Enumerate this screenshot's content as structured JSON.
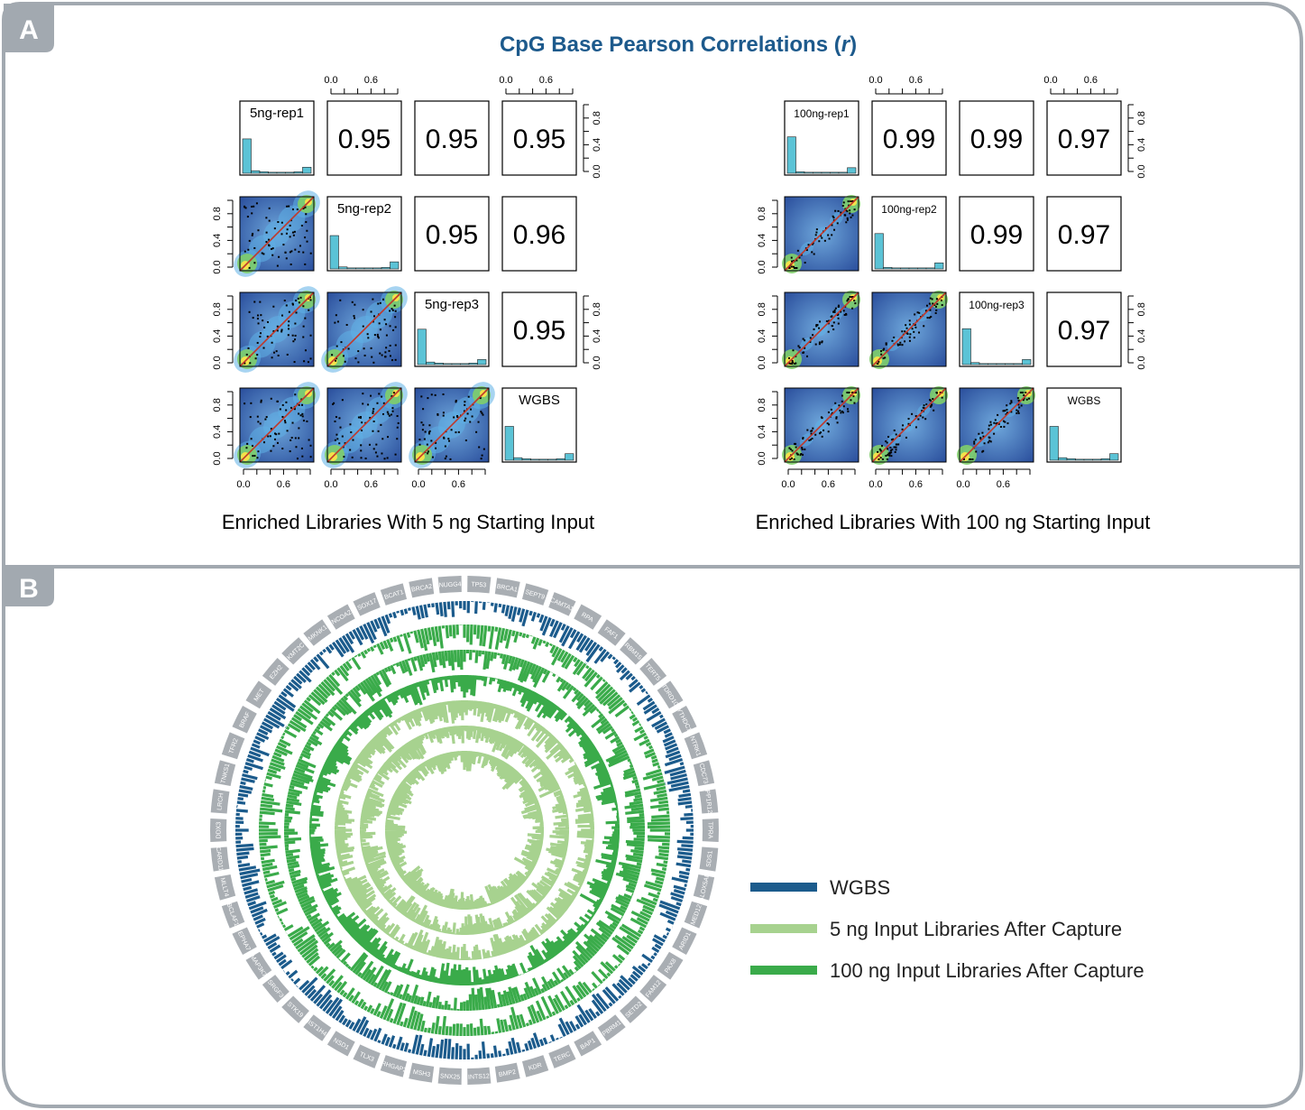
{
  "panels": {
    "a_label": "A",
    "b_label": "B",
    "title": "CpG Base Pearson Correlations (r)",
    "title_main": "CpG Base Pearson Correlations (",
    "title_italic": "r",
    "title_close": ")"
  },
  "colors": {
    "frame": "#a2a9b0",
    "title": "#1d5a8c",
    "wgbs": "#1b5b8c",
    "light_green": "#a7d28f",
    "green": "#3aab4a",
    "histogram": "#5bc3d6",
    "diagonal_line": "#c0392b"
  },
  "chart_data": [
    {
      "type": "table",
      "subtype": "pairs-correlation-matrix",
      "title": "Enriched Libraries With 5 ng Starting Input",
      "samples": [
        "5ng-rep1",
        "5ng-rep2",
        "5ng-rep3",
        "WGBS"
      ],
      "correlations": [
        [
          null,
          0.95,
          0.95,
          0.95
        ],
        [
          null,
          null,
          0.95,
          0.96
        ],
        [
          null,
          null,
          null,
          0.95
        ],
        [
          null,
          null,
          null,
          null
        ]
      ],
      "correlation_labels": [
        [
          "",
          "0.95",
          "0.95",
          "0.95"
        ],
        [
          "",
          "",
          "0.95",
          "0.96"
        ],
        [
          "",
          "",
          "",
          "0.95"
        ],
        [
          "",
          "",
          "",
          ""
        ]
      ],
      "histograms": [
        [
          0.68,
          0.05,
          0.03,
          0.02,
          0.02,
          0.02,
          0.03,
          0.12
        ],
        [
          0.66,
          0.04,
          0.02,
          0.02,
          0.02,
          0.02,
          0.03,
          0.14
        ],
        [
          0.7,
          0.05,
          0.03,
          0.02,
          0.02,
          0.02,
          0.03,
          0.1
        ],
        [
          0.67,
          0.05,
          0.03,
          0.02,
          0.02,
          0.02,
          0.03,
          0.13
        ]
      ],
      "axis_ticks": [
        "0.0",
        "0.4",
        "0.8"
      ],
      "axis_ticks_bottom": [
        "0.0",
        "0.6"
      ],
      "xlim": [
        0,
        1
      ],
      "ylim": [
        0,
        1
      ]
    },
    {
      "type": "table",
      "subtype": "pairs-correlation-matrix",
      "title": "Enriched Libraries With 100 ng Starting Input",
      "samples": [
        "100ng-rep1",
        "100ng-rep2",
        "100ng-rep3",
        "WGBS"
      ],
      "correlations": [
        [
          null,
          0.99,
          0.99,
          0.97
        ],
        [
          null,
          null,
          0.99,
          0.97
        ],
        [
          null,
          null,
          null,
          0.97
        ],
        [
          null,
          null,
          null,
          null
        ]
      ],
      "correlation_labels": [
        [
          "",
          "0.99",
          "0.99",
          "0.97"
        ],
        [
          "",
          "",
          "0.99",
          "0.97"
        ],
        [
          "",
          "",
          "",
          "0.97"
        ],
        [
          "",
          "",
          "",
          ""
        ]
      ],
      "histograms": [
        [
          0.72,
          0.03,
          0.02,
          0.02,
          0.02,
          0.02,
          0.02,
          0.11
        ],
        [
          0.7,
          0.03,
          0.02,
          0.02,
          0.02,
          0.02,
          0.02,
          0.12
        ],
        [
          0.71,
          0.04,
          0.02,
          0.02,
          0.02,
          0.02,
          0.02,
          0.1
        ],
        [
          0.67,
          0.05,
          0.03,
          0.02,
          0.02,
          0.02,
          0.03,
          0.13
        ]
      ],
      "axis_ticks": [
        "0.0",
        "0.4",
        "0.8"
      ],
      "axis_ticks_bottom": [
        "0.0",
        "0.6"
      ],
      "xlim": [
        0,
        1
      ],
      "ylim": [
        0,
        1
      ]
    },
    {
      "type": "bar",
      "subtype": "circos",
      "genes": [
        "TP53",
        "BRCA1",
        "SEPT9",
        "CAMTA1",
        "RPA",
        "FAF1",
        "RBM15",
        "TERT5",
        "TDRD10",
        "YTHDC1",
        "NTRK1",
        "CDC73",
        "PPP1R12B",
        "TPRA",
        "SDS1",
        "ALOX5AP",
        "MED12",
        "ARID1",
        "PAX8",
        "FAM12",
        "SETD2",
        "PBRM1",
        "BAP1",
        "TERC",
        "KDR",
        "BMP2",
        "INTS12",
        "SNX25",
        "MSH3",
        "ARHGAP26",
        "TLX3",
        "NSD1",
        "HIST1H4E",
        "STK19",
        "SRGF3",
        "MAP3K7",
        "EPHA7",
        "BCLAF1",
        "MLLT4",
        "CARD11",
        "DDX3",
        "LRCH",
        "TNKS1",
        "TFR2",
        "BRAF",
        "MET",
        "EZH2",
        "KMT2C",
        "MKNK1",
        "NCOA2",
        "SOX17",
        "BCAT1",
        "BRCA2",
        "NUGG4"
      ],
      "rings": [
        {
          "name": "WGBS",
          "level": 0.55
        },
        {
          "name": "100 ng Input Libraries After Capture",
          "level": 0.62
        },
        {
          "name": "100 ng Input Libraries After Capture",
          "level": 0.6
        },
        {
          "name": "100 ng Input Libraries After Capture",
          "level": 0.58
        },
        {
          "name": "5 ng Input Libraries After Capture",
          "level": 0.55
        },
        {
          "name": "5 ng Input Libraries After Capture",
          "level": 0.55
        },
        {
          "name": "5 ng Input Libraries After Capture",
          "level": 0.52
        }
      ]
    }
  ],
  "legend": {
    "items": [
      {
        "label": "WGBS",
        "color": "#1b5b8c"
      },
      {
        "label": "5 ng Input Libraries After Capture",
        "color": "#a7d28f"
      },
      {
        "label": "100 ng Input Libraries After Capture",
        "color": "#3aab4a"
      }
    ]
  }
}
